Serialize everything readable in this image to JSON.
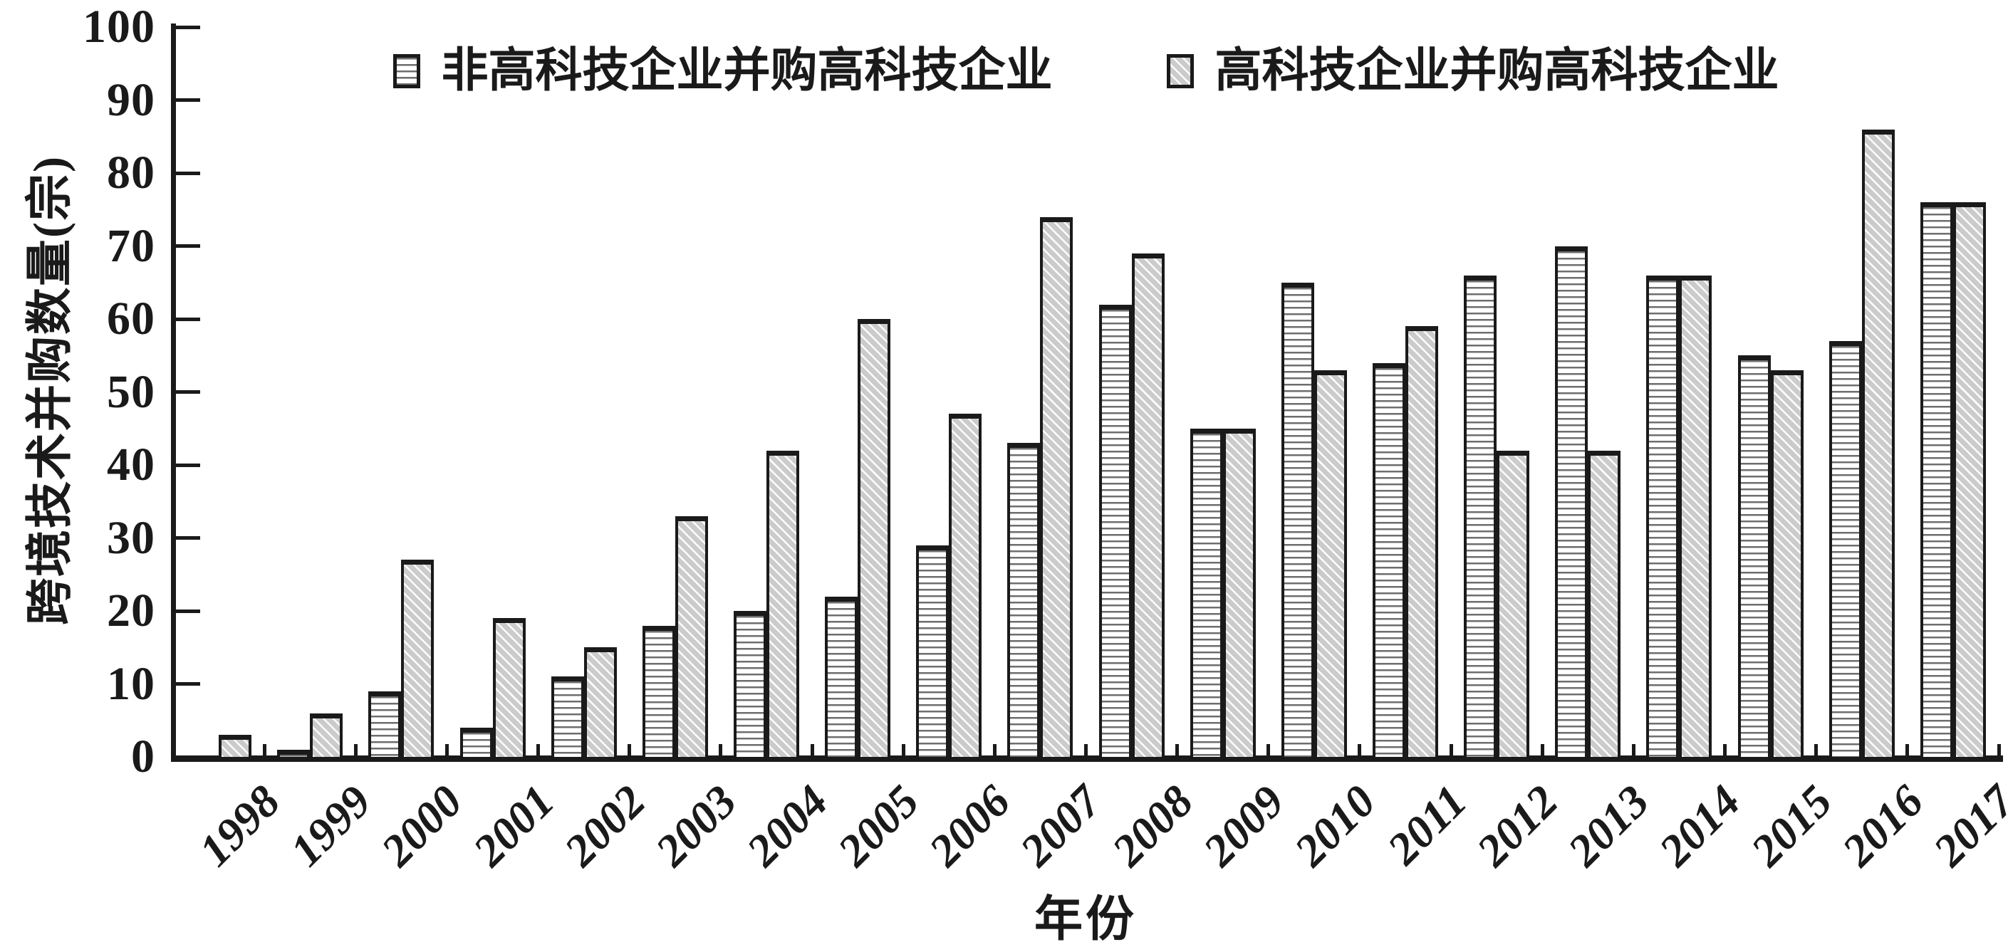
{
  "chart_data": {
    "type": "bar",
    "title": "",
    "xlabel": "年份",
    "ylabel": "跨境技术并购数量(宗)",
    "ylim": [
      0,
      100
    ],
    "ytick_step": 10,
    "grid": false,
    "legend_position": "top-center",
    "categories": [
      "1998",
      "1999",
      "2000",
      "2001",
      "2002",
      "2003",
      "2004",
      "2005",
      "2006",
      "2007",
      "2008",
      "2009",
      "2010",
      "2011",
      "2012",
      "2013",
      "2014",
      "2015",
      "2016",
      "2017"
    ],
    "series": [
      {
        "name": "非高科技企业并购高科技企业",
        "pattern": "horizontal-stripes",
        "values": [
          0,
          1,
          9,
          4,
          11,
          18,
          20,
          22,
          29,
          43,
          62,
          45,
          65,
          54,
          66,
          70,
          66,
          55,
          57,
          76
        ]
      },
      {
        "name": "高科技企业并购高科技企业",
        "pattern": "diagonal-hatch",
        "values": [
          3,
          6,
          27,
          19,
          15,
          33,
          42,
          60,
          47,
          74,
          69,
          45,
          53,
          59,
          42,
          42,
          66,
          53,
          86,
          76
        ]
      }
    ],
    "colors": {
      "ink": "#1a1a1a",
      "hatch_fill": "#cbcbcb",
      "stripe_line": "#6e6e6e",
      "background": "#ffffff"
    }
  }
}
